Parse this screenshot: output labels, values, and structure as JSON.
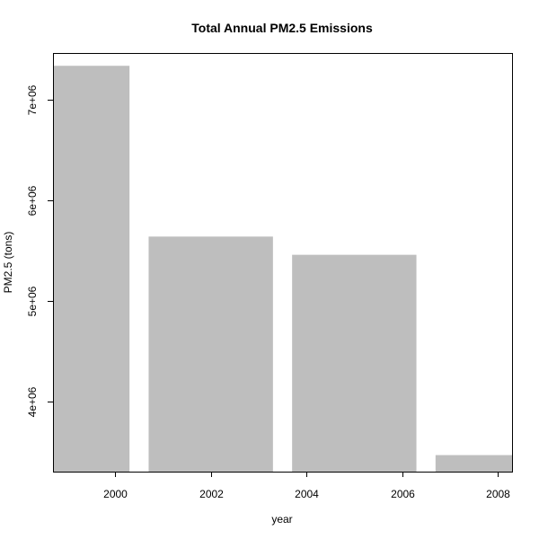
{
  "chart_data": {
    "type": "bar",
    "title": "Total Annual PM2.5 Emissions",
    "xlabel": "year",
    "ylabel": "PM2.5 (tons)",
    "x": [
      1999,
      2002,
      2005,
      2008
    ],
    "values": [
      7332967,
      5635780,
      5454703,
      3464206
    ],
    "bar_width_years": 2.6,
    "xlim": [
      1998.7,
      2008.3
    ],
    "ylim": [
      3300000,
      7460000
    ],
    "x_ticks": [
      2000,
      2002,
      2004,
      2006,
      2008
    ],
    "x_tick_labels": [
      "2000",
      "2002",
      "2004",
      "2006",
      "2008"
    ],
    "y_ticks": [
      4000000,
      5000000,
      6000000,
      7000000
    ],
    "y_tick_labels": [
      "4e+06",
      "5e+06",
      "6e+06",
      "7e+06"
    ],
    "grid": false,
    "legend": "none",
    "bar_color": "#bebebe",
    "axis_color": "#000000",
    "background_color": "#ffffff"
  }
}
